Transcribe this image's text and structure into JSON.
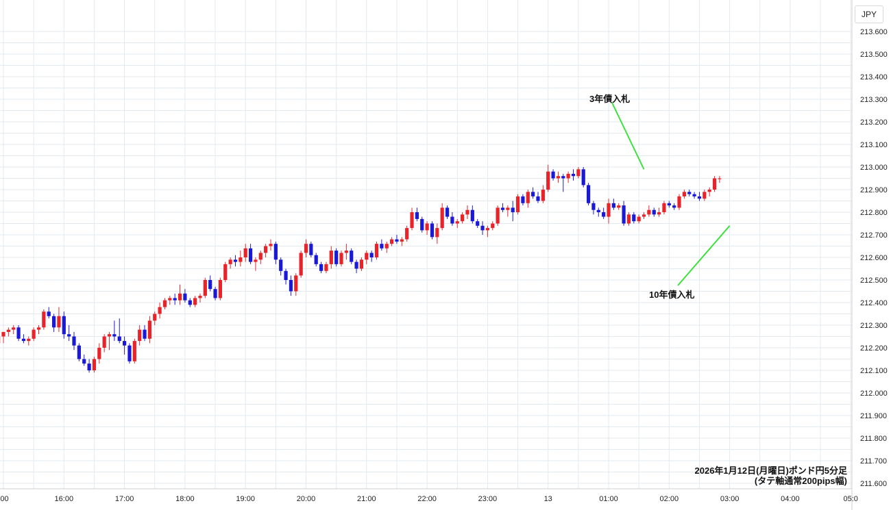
{
  "currency_label": "JPY",
  "caption": {
    "line1": "2026年1月12日(月曜日)ポンド円5分足",
    "line2": "(タテ軸通常200pips幅)"
  },
  "colors": {
    "up": "#e8242a",
    "down": "#1a1ad6",
    "grid": "#e3eaef",
    "annotation_line": "#3de03d",
    "axis_text": "#222222"
  },
  "annotations": [
    {
      "label": "3年債入札",
      "time": "01:35",
      "price": 212.99
    },
    {
      "label": "10年債入札",
      "time": "03:00",
      "price": 212.74
    }
  ],
  "chart_data": {
    "type": "candlestick",
    "title": "",
    "x_tick_labels": [
      ":00",
      "16:00",
      "17:00",
      "18:00",
      "19:00",
      "20:00",
      "21:00",
      "22:00",
      "23:00",
      "13",
      "01:00",
      "02:00",
      "03:00",
      "04:00",
      "05:0"
    ],
    "y_tick_labels": [
      "213.600",
      "213.500",
      "213.400",
      "213.300",
      "213.200",
      "213.100",
      "213.000",
      "212.900",
      "212.800",
      "212.700",
      "212.600",
      "212.500",
      "212.400",
      "212.300",
      "212.200",
      "212.100",
      "212.000",
      "211.900",
      "211.800",
      "211.700",
      "211.600"
    ],
    "ylim": [
      211.6,
      213.6
    ],
    "grid": true,
    "interval": "5min",
    "x_start": "14:55",
    "candles": [
      [
        212.22,
        212.26,
        212.2,
        212.25
      ],
      [
        212.25,
        212.27,
        212.22,
        212.27
      ],
      [
        212.27,
        212.29,
        212.25,
        212.28
      ],
      [
        212.28,
        212.3,
        212.26,
        212.29
      ],
      [
        212.29,
        212.3,
        212.23,
        212.24
      ],
      [
        212.24,
        212.26,
        212.22,
        212.23
      ],
      [
        212.23,
        212.25,
        212.21,
        212.24
      ],
      [
        212.24,
        212.29,
        212.23,
        212.28
      ],
      [
        212.28,
        212.3,
        212.26,
        212.29
      ],
      [
        212.29,
        212.37,
        212.28,
        212.36
      ],
      [
        212.36,
        212.38,
        212.33,
        212.34
      ],
      [
        212.34,
        212.35,
        212.27,
        212.29
      ],
      [
        212.29,
        212.38,
        212.27,
        212.34
      ],
      [
        212.34,
        212.36,
        212.24,
        212.26
      ],
      [
        212.26,
        212.3,
        212.23,
        212.25
      ],
      [
        212.25,
        212.27,
        212.19,
        212.21
      ],
      [
        212.21,
        212.22,
        212.14,
        212.15
      ],
      [
        212.15,
        212.17,
        212.12,
        212.13
      ],
      [
        212.13,
        212.15,
        212.09,
        212.1
      ],
      [
        212.1,
        212.16,
        212.09,
        212.15
      ],
      [
        212.15,
        212.22,
        212.13,
        212.2
      ],
      [
        212.2,
        212.26,
        212.18,
        212.25
      ],
      [
        212.25,
        212.27,
        212.19,
        212.26
      ],
      [
        212.26,
        212.32,
        212.23,
        212.25
      ],
      [
        212.25,
        212.33,
        212.22,
        212.23
      ],
      [
        212.23,
        212.25,
        212.17,
        212.21
      ],
      [
        212.21,
        212.22,
        212.13,
        212.14
      ],
      [
        212.14,
        212.24,
        212.13,
        212.23
      ],
      [
        212.23,
        212.3,
        212.21,
        212.28
      ],
      [
        212.28,
        212.3,
        212.23,
        212.24
      ],
      [
        212.24,
        212.34,
        212.22,
        212.32
      ],
      [
        212.32,
        212.36,
        212.3,
        212.35
      ],
      [
        212.35,
        212.4,
        212.33,
        212.38
      ],
      [
        212.38,
        212.42,
        212.37,
        212.41
      ],
      [
        212.41,
        212.43,
        212.39,
        212.42
      ],
      [
        212.42,
        212.44,
        212.39,
        212.41
      ],
      [
        212.41,
        212.48,
        212.39,
        212.44
      ],
      [
        212.44,
        212.46,
        212.4,
        212.41
      ],
      [
        212.41,
        212.42,
        212.38,
        212.39
      ],
      [
        212.39,
        212.43,
        212.38,
        212.42
      ],
      [
        212.42,
        212.44,
        212.4,
        212.43
      ],
      [
        212.43,
        212.51,
        212.42,
        212.5
      ],
      [
        212.5,
        212.52,
        212.45,
        212.46
      ],
      [
        212.46,
        212.47,
        212.41,
        212.42
      ],
      [
        212.42,
        212.51,
        212.41,
        212.5
      ],
      [
        212.5,
        212.58,
        212.49,
        212.57
      ],
      [
        212.57,
        212.6,
        212.55,
        212.59
      ],
      [
        212.59,
        212.61,
        212.56,
        212.58
      ],
      [
        212.58,
        212.63,
        212.56,
        212.6
      ],
      [
        212.6,
        212.66,
        212.58,
        212.64
      ],
      [
        212.64,
        212.66,
        212.57,
        212.58
      ],
      [
        212.58,
        212.6,
        212.54,
        212.59
      ],
      [
        212.59,
        212.63,
        212.57,
        212.62
      ],
      [
        212.62,
        212.66,
        212.6,
        212.65
      ],
      [
        212.65,
        212.68,
        212.63,
        212.66
      ],
      [
        212.66,
        212.67,
        212.57,
        212.59
      ],
      [
        212.59,
        212.6,
        212.52,
        212.54
      ],
      [
        212.54,
        212.55,
        212.48,
        212.5
      ],
      [
        212.5,
        212.52,
        212.43,
        212.45
      ],
      [
        212.45,
        212.53,
        212.43,
        212.52
      ],
      [
        212.52,
        212.63,
        212.51,
        212.62
      ],
      [
        212.62,
        212.68,
        212.6,
        212.66
      ],
      [
        212.66,
        212.67,
        212.6,
        212.61
      ],
      [
        212.61,
        212.62,
        212.56,
        212.57
      ],
      [
        212.57,
        212.58,
        212.53,
        212.54
      ],
      [
        212.54,
        212.58,
        212.53,
        212.57
      ],
      [
        212.57,
        212.65,
        212.55,
        212.63
      ],
      [
        212.63,
        212.64,
        212.56,
        212.57
      ],
      [
        212.57,
        212.63,
        212.56,
        212.62
      ],
      [
        212.62,
        212.66,
        212.59,
        212.63
      ],
      [
        212.63,
        212.64,
        212.57,
        212.58
      ],
      [
        212.58,
        212.59,
        212.53,
        212.55
      ],
      [
        212.55,
        212.6,
        212.54,
        212.59
      ],
      [
        212.59,
        212.63,
        212.57,
        212.62
      ],
      [
        212.62,
        212.63,
        212.58,
        212.6
      ],
      [
        212.6,
        212.67,
        212.59,
        212.66
      ],
      [
        212.66,
        212.68,
        212.63,
        212.64
      ],
      [
        212.64,
        212.67,
        212.62,
        212.66
      ],
      [
        212.66,
        212.69,
        212.65,
        212.68
      ],
      [
        212.68,
        212.7,
        212.66,
        212.67
      ],
      [
        212.67,
        212.69,
        212.65,
        212.68
      ],
      [
        212.68,
        212.74,
        212.67,
        212.73
      ],
      [
        212.73,
        212.82,
        212.72,
        212.8
      ],
      [
        212.8,
        212.82,
        212.76,
        212.77
      ],
      [
        212.77,
        212.78,
        212.71,
        212.72
      ],
      [
        212.72,
        212.76,
        212.7,
        212.75
      ],
      [
        212.75,
        212.76,
        212.68,
        212.69
      ],
      [
        212.69,
        212.75,
        212.66,
        212.73
      ],
      [
        212.73,
        212.84,
        212.72,
        212.82
      ],
      [
        212.82,
        212.83,
        212.77,
        212.78
      ],
      [
        212.78,
        212.8,
        212.74,
        212.75
      ],
      [
        212.75,
        212.77,
        212.73,
        212.76
      ],
      [
        212.76,
        212.8,
        212.75,
        212.79
      ],
      [
        212.79,
        212.83,
        212.77,
        212.81
      ],
      [
        212.81,
        212.83,
        212.75,
        212.76
      ],
      [
        212.76,
        212.77,
        212.73,
        212.74
      ],
      [
        212.74,
        212.76,
        212.7,
        212.72
      ],
      [
        212.72,
        212.74,
        212.69,
        212.73
      ],
      [
        212.73,
        212.76,
        212.72,
        212.75
      ],
      [
        212.75,
        212.83,
        212.74,
        212.82
      ],
      [
        212.82,
        212.84,
        212.8,
        212.81
      ],
      [
        212.81,
        212.83,
        212.78,
        212.82
      ],
      [
        212.82,
        212.85,
        212.76,
        212.8
      ],
      [
        212.8,
        212.88,
        212.79,
        212.87
      ],
      [
        212.87,
        212.88,
        212.83,
        212.84
      ],
      [
        212.84,
        212.9,
        212.82,
        212.89
      ],
      [
        212.89,
        212.91,
        212.86,
        212.87
      ],
      [
        212.87,
        212.89,
        212.84,
        212.85
      ],
      [
        212.85,
        212.92,
        212.84,
        212.9
      ],
      [
        212.9,
        213.01,
        212.89,
        212.98
      ],
      [
        212.98,
        212.99,
        212.94,
        212.95
      ],
      [
        212.95,
        212.98,
        212.93,
        212.96
      ],
      [
        212.96,
        212.97,
        212.89,
        212.95
      ],
      [
        212.95,
        212.98,
        212.93,
        212.97
      ],
      [
        212.97,
        212.99,
        212.94,
        212.96
      ],
      [
        212.96,
        213.0,
        212.95,
        212.99
      ],
      [
        212.99,
        213.0,
        212.91,
        212.92
      ],
      [
        212.92,
        212.93,
        212.83,
        212.84
      ],
      [
        212.84,
        212.85,
        212.79,
        212.81
      ],
      [
        212.81,
        212.82,
        212.78,
        212.8
      ],
      [
        212.8,
        212.82,
        212.77,
        212.78
      ],
      [
        212.78,
        212.86,
        212.75,
        212.84
      ],
      [
        212.84,
        212.86,
        212.81,
        212.82
      ],
      [
        212.82,
        212.84,
        212.81,
        212.83
      ],
      [
        212.83,
        212.85,
        212.74,
        212.75
      ],
      [
        212.75,
        212.8,
        212.74,
        212.79
      ],
      [
        212.79,
        212.8,
        212.75,
        212.76
      ],
      [
        212.76,
        212.79,
        212.75,
        212.78
      ],
      [
        212.78,
        212.8,
        212.77,
        212.79
      ],
      [
        212.79,
        212.83,
        212.78,
        212.81
      ],
      [
        212.81,
        212.82,
        212.78,
        212.79
      ],
      [
        212.79,
        212.82,
        212.78,
        212.8
      ],
      [
        212.8,
        212.85,
        212.79,
        212.84
      ],
      [
        212.84,
        212.85,
        212.82,
        212.83
      ],
      [
        212.83,
        212.84,
        212.81,
        212.82
      ],
      [
        212.82,
        212.88,
        212.81,
        212.87
      ],
      [
        212.87,
        212.9,
        212.86,
        212.89
      ],
      [
        212.89,
        212.9,
        212.87,
        212.88
      ],
      [
        212.88,
        212.89,
        212.86,
        212.87
      ],
      [
        212.87,
        212.89,
        212.85,
        212.86
      ],
      [
        212.86,
        212.9,
        212.85,
        212.89
      ],
      [
        212.89,
        212.91,
        212.87,
        212.9
      ],
      [
        212.9,
        212.96,
        212.89,
        212.95
      ],
      [
        212.95,
        212.96,
        212.93,
        212.95
      ]
    ]
  }
}
